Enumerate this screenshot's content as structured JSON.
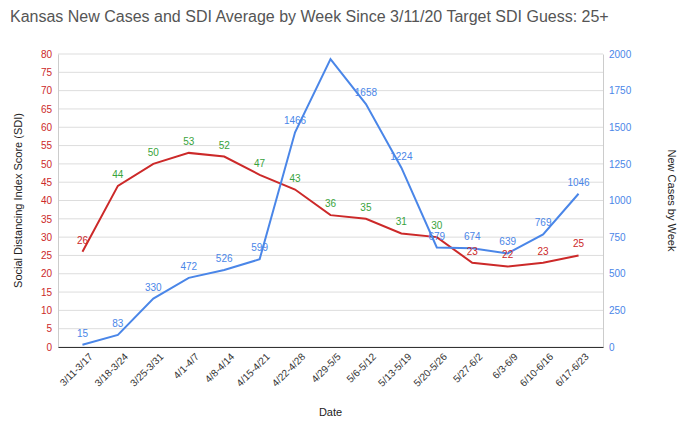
{
  "chart_data": {
    "type": "line",
    "title": "Kansas New Cases and SDI Average by Week Since 3/11/20 Target SDI Guess: 25+",
    "x_label": "Date",
    "y_label": "Social Distancing Index Score (SDI)",
    "y2_label": "New Cases by Week",
    "categories": [
      "3/11-3/17",
      "3/18-3/24",
      "3/25-3/31",
      "4/1-4/7",
      "4/8-4/14",
      "4/15-4/21",
      "4/22-4/28",
      "4/29-5/5",
      "5/6-5/12",
      "5/13-5/19",
      "5/20-5/26",
      "5/27-6/2",
      "6/3-6/9",
      "6/10-6/16",
      "6/17-6/23"
    ],
    "series": [
      {
        "color": "#cc2929",
        "colors": [
          "#cc2929",
          "#38a33b",
          "#38a33b",
          "#38a33b",
          "#38a33b",
          "#38a33b",
          "#38a33b",
          "#38a33b",
          "#38a33b",
          "#38a33b",
          "#38a33b",
          "#cc2929",
          "#cc2929",
          "#cc2929",
          "#cc2929"
        ],
        "values": [
          26,
          44,
          50,
          53,
          52,
          47,
          43,
          36,
          35,
          31,
          30,
          23,
          22,
          23,
          25
        ]
      },
      {
        "color": "#4a86e8",
        "axis": "y2",
        "values": [
          15,
          83,
          330,
          472,
          526,
          599,
          1466,
          1965,
          1658,
          1224,
          679,
          674,
          639,
          769,
          1046
        ],
        "value_labels": [
          "15",
          "83",
          "330",
          "472",
          "526",
          "599",
          "1466",
          null,
          "1658",
          "1224",
          "679",
          "674",
          "639",
          "769",
          "1046"
        ]
      }
    ],
    "ylim": [
      0,
      80
    ],
    "yticks": [
      0,
      5,
      10,
      15,
      20,
      25,
      30,
      35,
      40,
      45,
      50,
      55,
      60,
      65,
      70,
      75,
      80
    ],
    "y2lim": [
      0,
      2000
    ],
    "y2ticks": [
      0,
      250,
      500,
      750,
      1000,
      1250,
      1500,
      1750,
      2000
    ],
    "grid": true,
    "data_labels": true
  }
}
